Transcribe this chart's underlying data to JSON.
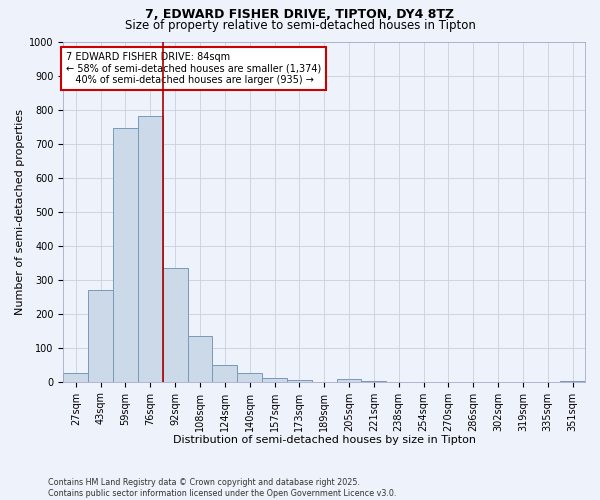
{
  "title_line1": "7, EDWARD FISHER DRIVE, TIPTON, DY4 8TZ",
  "title_line2": "Size of property relative to semi-detached houses in Tipton",
  "xlabel": "Distribution of semi-detached houses by size in Tipton",
  "ylabel": "Number of semi-detached properties",
  "footnote": "Contains HM Land Registry data © Crown copyright and database right 2025.\nContains public sector information licensed under the Open Government Licence v3.0.",
  "categories": [
    "27sqm",
    "43sqm",
    "59sqm",
    "76sqm",
    "92sqm",
    "108sqm",
    "124sqm",
    "140sqm",
    "157sqm",
    "173sqm",
    "189sqm",
    "205sqm",
    "221sqm",
    "238sqm",
    "254sqm",
    "270sqm",
    "286sqm",
    "302sqm",
    "319sqm",
    "335sqm",
    "351sqm"
  ],
  "values": [
    25,
    270,
    745,
    780,
    335,
    135,
    50,
    25,
    12,
    5,
    0,
    8,
    2,
    0,
    0,
    0,
    0,
    0,
    0,
    0,
    2
  ],
  "bar_color": "#ccd9e8",
  "bar_edgecolor": "#7799bb",
  "vline_x": 3.5,
  "vline_color": "#aa0000",
  "annotation_box_text": "7 EDWARD FISHER DRIVE: 84sqm\n← 58% of semi-detached houses are smaller (1,374)\n   40% of semi-detached houses are larger (935) →",
  "annotation_box_color": "#cc0000",
  "annotation_box_fill": "#ffffff",
  "ylim": [
    0,
    1000
  ],
  "yticks": [
    0,
    100,
    200,
    300,
    400,
    500,
    600,
    700,
    800,
    900,
    1000
  ],
  "bg_color": "#eef2fa",
  "grid_color": "#c8d0e0",
  "title_fontsize": 9,
  "subtitle_fontsize": 8.5,
  "axis_fontsize": 8,
  "tick_fontsize": 7,
  "annot_fontsize": 7
}
